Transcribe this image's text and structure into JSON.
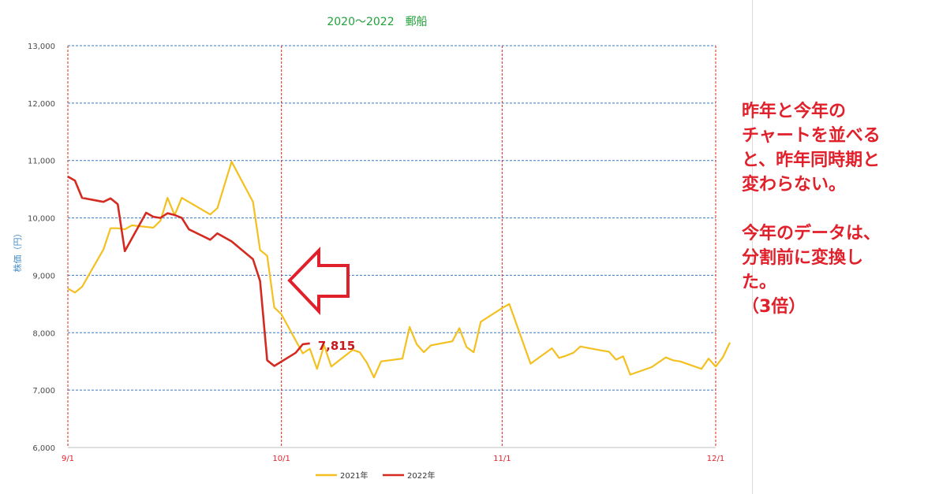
{
  "chart_data": {
    "type": "line",
    "title": "2020～2022　郵船",
    "ylabel": "株価（円）",
    "xlabel": "",
    "ylim": [
      6000,
      13000
    ],
    "y_ticks": [
      "13,000",
      "12,000",
      "11,000",
      "10,000",
      "9,000",
      "8,000",
      "7,000",
      "6,000"
    ],
    "x_ticks": [
      {
        "label": "9/1",
        "date": "09-01"
      },
      {
        "label": "10/1",
        "date": "10-01"
      },
      {
        "label": "11/1",
        "date": "11-01"
      },
      {
        "label": "12/1",
        "date": "12-01"
      }
    ],
    "grid": true,
    "legend_position": "bottom",
    "series": [
      {
        "name": "2021年",
        "color": "#f4c020",
        "points": [
          [
            "09-01",
            8770
          ],
          [
            "09-02",
            8700
          ],
          [
            "09-03",
            8800
          ],
          [
            "09-06",
            9450
          ],
          [
            "09-07",
            9820
          ],
          [
            "09-08",
            9820
          ],
          [
            "09-09",
            9800
          ],
          [
            "09-10",
            9870
          ],
          [
            "09-13",
            9830
          ],
          [
            "09-14",
            9950
          ],
          [
            "09-15",
            10350
          ],
          [
            "09-16",
            10050
          ],
          [
            "09-17",
            10350
          ],
          [
            "09-21",
            10060
          ],
          [
            "09-22",
            10170
          ],
          [
            "09-24",
            10980
          ],
          [
            "09-27",
            10280
          ],
          [
            "09-28",
            9440
          ],
          [
            "09-29",
            9340
          ],
          [
            "09-30",
            8440
          ],
          [
            "10-01",
            8320
          ],
          [
            "10-04",
            7640
          ],
          [
            "10-05",
            7720
          ],
          [
            "10-06",
            7370
          ],
          [
            "10-07",
            7780
          ],
          [
            "10-08",
            7410
          ],
          [
            "10-11",
            7700
          ],
          [
            "10-12",
            7660
          ],
          [
            "10-13",
            7480
          ],
          [
            "10-14",
            7220
          ],
          [
            "10-15",
            7500
          ],
          [
            "10-18",
            7550
          ],
          [
            "10-19",
            8100
          ],
          [
            "10-20",
            7800
          ],
          [
            "10-21",
            7660
          ],
          [
            "10-22",
            7780
          ],
          [
            "10-25",
            7850
          ],
          [
            "10-26",
            8080
          ],
          [
            "10-27",
            7750
          ],
          [
            "10-28",
            7660
          ],
          [
            "10-29",
            8190
          ],
          [
            "11-01",
            8430
          ],
          [
            "11-02",
            8500
          ],
          [
            "11-05",
            7460
          ],
          [
            "11-08",
            7730
          ],
          [
            "11-09",
            7560
          ],
          [
            "11-10",
            7600
          ],
          [
            "11-11",
            7650
          ],
          [
            "11-12",
            7760
          ],
          [
            "11-15",
            7690
          ],
          [
            "11-16",
            7670
          ],
          [
            "11-17",
            7530
          ],
          [
            "11-18",
            7590
          ],
          [
            "11-19",
            7270
          ],
          [
            "11-22",
            7400
          ],
          [
            "11-24",
            7570
          ],
          [
            "11-25",
            7520
          ],
          [
            "11-26",
            7500
          ],
          [
            "11-29",
            7370
          ],
          [
            "11-30",
            7550
          ],
          [
            "12-01",
            7410
          ],
          [
            "12-02",
            7570
          ],
          [
            "12-03",
            7830
          ]
        ]
      },
      {
        "name": "2022年",
        "color": "#d42a20",
        "points": [
          [
            "09-01",
            10720
          ],
          [
            "09-02",
            10650
          ],
          [
            "09-03",
            10350
          ],
          [
            "09-06",
            10280
          ],
          [
            "09-07",
            10340
          ],
          [
            "09-08",
            10240
          ],
          [
            "09-09",
            9420
          ],
          [
            "09-12",
            10090
          ],
          [
            "09-13",
            10020
          ],
          [
            "09-14",
            10000
          ],
          [
            "09-15",
            10080
          ],
          [
            "09-16",
            10050
          ],
          [
            "09-17",
            10000
          ],
          [
            "09-18",
            9800
          ],
          [
            "09-21",
            9620
          ],
          [
            "09-22",
            9730
          ],
          [
            "09-24",
            9590
          ],
          [
            "09-27",
            9280
          ],
          [
            "09-28",
            8900
          ],
          [
            "09-29",
            7520
          ],
          [
            "09-30",
            7420
          ],
          [
            "10-03",
            7650
          ],
          [
            "10-04",
            7800
          ],
          [
            "10-05",
            7815
          ]
        ]
      }
    ],
    "annotations": [
      {
        "text": "7,815",
        "series": "2022年",
        "date": "10-05",
        "value": 7815
      }
    ]
  },
  "note": {
    "lines": [
      "昨年と今年の",
      "チャートを並べる",
      "と、昨年同時期と",
      "変わらない。",
      "",
      "今年のデータは、",
      "分割前に変換し",
      "た。",
      "（3倍）"
    ]
  }
}
